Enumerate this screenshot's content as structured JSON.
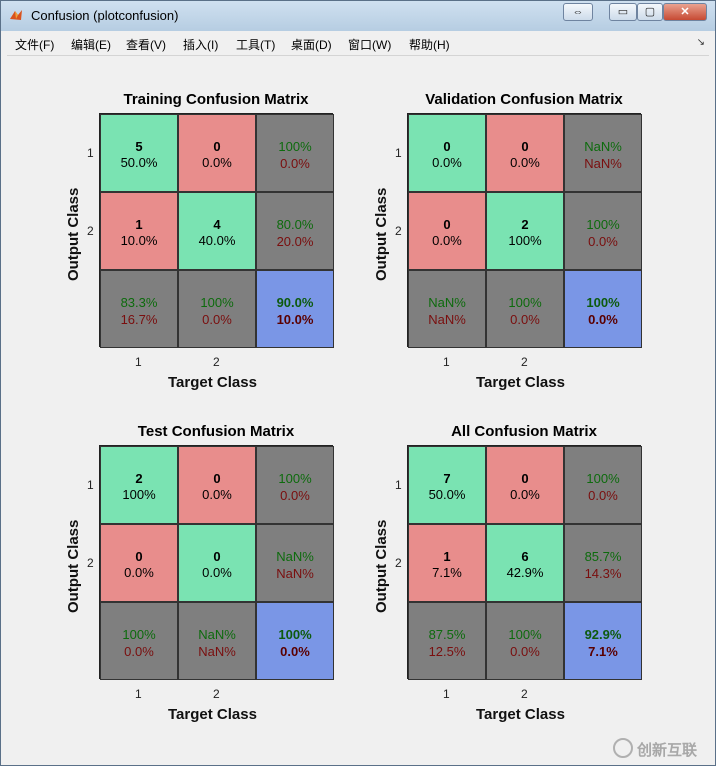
{
  "window": {
    "title": "Confusion (plotconfusion)",
    "minimize": "▭",
    "maximize": "▢",
    "close": "✕",
    "restore": "⇔"
  },
  "menu": [
    "文件(F)",
    "编辑(E)",
    "查看(V)",
    "插入(I)",
    "工具(T)",
    "桌面(D)",
    "窗口(W)",
    "帮助(H)"
  ],
  "colors": {
    "correct": "#7ae3b2",
    "incorrect": "#e88d8c",
    "summary": "#7f7f7f",
    "total": "#7a96e6"
  },
  "chart_data": [
    {
      "type": "table",
      "title": "Training Confusion Matrix",
      "xlabel": "Target Class",
      "ylabel": "Output Class",
      "classes": [
        "1",
        "2"
      ],
      "cells": [
        [
          {
            "count": "5",
            "pct": "50.0%"
          },
          {
            "count": "0",
            "pct": "0.0%"
          }
        ],
        [
          {
            "count": "1",
            "pct": "10.0%"
          },
          {
            "count": "4",
            "pct": "40.0%"
          }
        ]
      ],
      "row_summary": [
        [
          "100%",
          "0.0%"
        ],
        [
          "80.0%",
          "20.0%"
        ]
      ],
      "col_summary": [
        [
          "83.3%",
          "16.7%"
        ],
        [
          "100%",
          "0.0%"
        ]
      ],
      "total": [
        "90.0%",
        "10.0%"
      ]
    },
    {
      "type": "table",
      "title": "Validation Confusion Matrix",
      "xlabel": "Target Class",
      "ylabel": "Output Class",
      "classes": [
        "1",
        "2"
      ],
      "cells": [
        [
          {
            "count": "0",
            "pct": "0.0%"
          },
          {
            "count": "0",
            "pct": "0.0%"
          }
        ],
        [
          {
            "count": "0",
            "pct": "0.0%"
          },
          {
            "count": "2",
            "pct": "100%"
          }
        ]
      ],
      "row_summary": [
        [
          "NaN%",
          "NaN%"
        ],
        [
          "100%",
          "0.0%"
        ]
      ],
      "col_summary": [
        [
          "NaN%",
          "NaN%"
        ],
        [
          "100%",
          "0.0%"
        ]
      ],
      "total": [
        "100%",
        "0.0%"
      ]
    },
    {
      "type": "table",
      "title": "Test Confusion Matrix",
      "xlabel": "Target Class",
      "ylabel": "Output Class",
      "classes": [
        "1",
        "2"
      ],
      "cells": [
        [
          {
            "count": "2",
            "pct": "100%"
          },
          {
            "count": "0",
            "pct": "0.0%"
          }
        ],
        [
          {
            "count": "0",
            "pct": "0.0%"
          },
          {
            "count": "0",
            "pct": "0.0%"
          }
        ]
      ],
      "row_summary": [
        [
          "100%",
          "0.0%"
        ],
        [
          "NaN%",
          "NaN%"
        ]
      ],
      "col_summary": [
        [
          "100%",
          "0.0%"
        ],
        [
          "NaN%",
          "NaN%"
        ]
      ],
      "total": [
        "100%",
        "0.0%"
      ]
    },
    {
      "type": "table",
      "title": "All Confusion Matrix",
      "xlabel": "Target Class",
      "ylabel": "Output Class",
      "classes": [
        "1",
        "2"
      ],
      "cells": [
        [
          {
            "count": "7",
            "pct": "50.0%"
          },
          {
            "count": "0",
            "pct": "0.0%"
          }
        ],
        [
          {
            "count": "1",
            "pct": "7.1%"
          },
          {
            "count": "6",
            "pct": "42.9%"
          }
        ]
      ],
      "row_summary": [
        [
          "100%",
          "0.0%"
        ],
        [
          "85.7%",
          "14.3%"
        ]
      ],
      "col_summary": [
        [
          "87.5%",
          "12.5%"
        ],
        [
          "100%",
          "0.0%"
        ]
      ],
      "total": [
        "92.9%",
        "7.1%"
      ]
    }
  ],
  "watermark": {
    "text": "创新互联"
  }
}
